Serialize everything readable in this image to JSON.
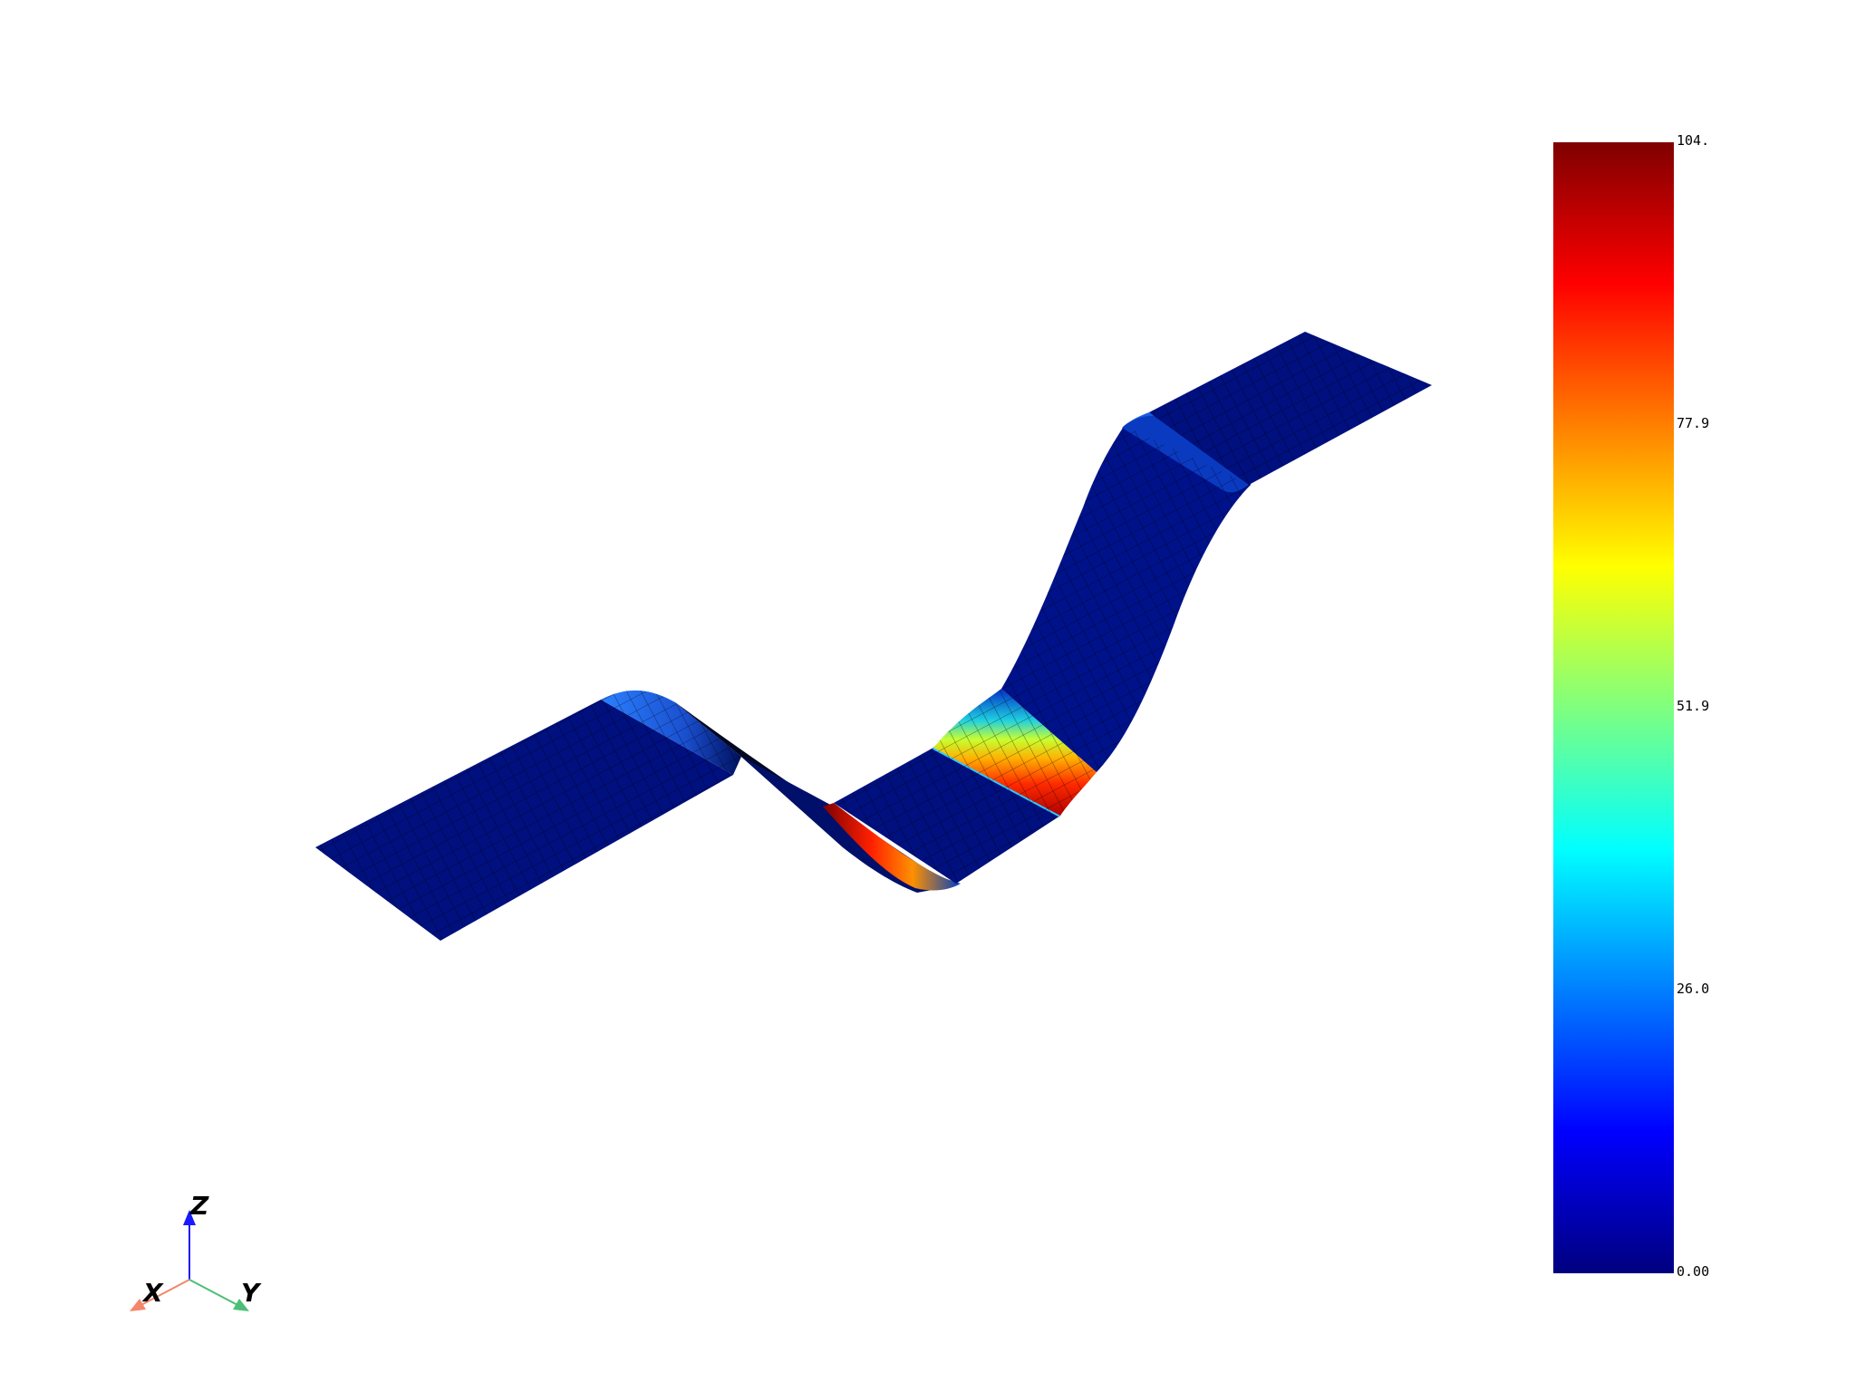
{
  "scalar_bar": {
    "min_value": 0,
    "max_value": 104,
    "labels": [
      "104.",
      "77.9",
      "51.9",
      "26.0",
      "0.00"
    ],
    "colormap": [
      "#00007f",
      "#0000ff",
      "#007fff",
      "#00ffff",
      "#7fff7f",
      "#ffff00",
      "#ff7f00",
      "#ff0000",
      "#7f0000"
    ]
  },
  "orientation_axes": {
    "x_label": "X",
    "y_label": "Y",
    "z_label": "Z",
    "x_color": "#f4866a",
    "y_color": "#4cbf76",
    "z_color": "#1a1aff"
  },
  "mesh": {
    "base_color": "#00107f",
    "edge_color": "#000000"
  }
}
